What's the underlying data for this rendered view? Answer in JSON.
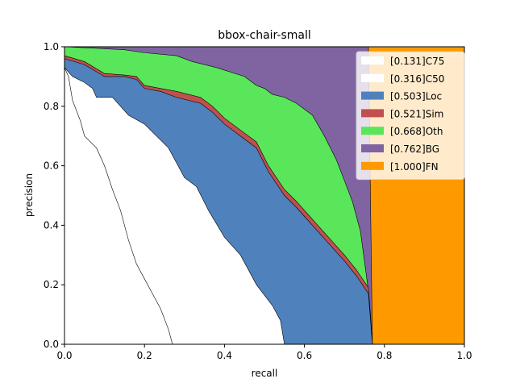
{
  "chart_data": {
    "type": "area",
    "title": "bbox-chair-small",
    "xlabel": "recall",
    "ylabel": "precision",
    "xlim": [
      0,
      1
    ],
    "ylim": [
      0,
      1
    ],
    "xticks": [
      "0.0",
      "0.2",
      "0.4",
      "0.6",
      "0.8",
      "1.0"
    ],
    "yticks": [
      "0.0",
      "0.2",
      "0.4",
      "0.6",
      "0.8",
      "1.0"
    ],
    "legend_position": "top-right",
    "grid": false,
    "series": [
      {
        "name": "[1.000]FN",
        "color": "#ff9900",
        "points": [
          [
            0,
            1
          ],
          [
            1,
            1
          ]
        ]
      },
      {
        "name": "[0.762]BG",
        "color": "#8064a2",
        "points": [
          [
            0,
            1
          ],
          [
            0.76,
            1
          ],
          [
            0.765,
            0.5
          ],
          [
            0.77,
            0
          ]
        ]
      },
      {
        "name": "[0.668]Oth",
        "color": "#5ae65a",
        "points": [
          [
            0,
            1
          ],
          [
            0.15,
            0.99
          ],
          [
            0.2,
            0.98
          ],
          [
            0.28,
            0.97
          ],
          [
            0.32,
            0.95
          ],
          [
            0.38,
            0.93
          ],
          [
            0.45,
            0.9
          ],
          [
            0.48,
            0.87
          ],
          [
            0.5,
            0.86
          ],
          [
            0.52,
            0.84
          ],
          [
            0.55,
            0.83
          ],
          [
            0.58,
            0.81
          ],
          [
            0.62,
            0.77
          ],
          [
            0.65,
            0.7
          ],
          [
            0.68,
            0.62
          ],
          [
            0.7,
            0.55
          ],
          [
            0.72,
            0.48
          ],
          [
            0.74,
            0.38
          ],
          [
            0.75,
            0.28
          ],
          [
            0.76,
            0.18
          ],
          [
            0.765,
            0.1
          ],
          [
            0.77,
            0
          ]
        ]
      },
      {
        "name": "[0.521]Sim",
        "color": "#c0504d",
        "points": [
          [
            0,
            0.97
          ],
          [
            0.05,
            0.95
          ],
          [
            0.1,
            0.91
          ],
          [
            0.15,
            0.905
          ],
          [
            0.18,
            0.9
          ],
          [
            0.2,
            0.87
          ],
          [
            0.24,
            0.86
          ],
          [
            0.28,
            0.85
          ],
          [
            0.34,
            0.83
          ],
          [
            0.37,
            0.8
          ],
          [
            0.4,
            0.76
          ],
          [
            0.44,
            0.72
          ],
          [
            0.48,
            0.68
          ],
          [
            0.51,
            0.6
          ],
          [
            0.55,
            0.52
          ],
          [
            0.58,
            0.48
          ],
          [
            0.62,
            0.42
          ],
          [
            0.66,
            0.36
          ],
          [
            0.7,
            0.3
          ],
          [
            0.73,
            0.25
          ],
          [
            0.76,
            0.19
          ],
          [
            0.77,
            0
          ]
        ]
      },
      {
        "name": "[0.503]Loc",
        "color": "#4f81bd",
        "points": [
          [
            0,
            0.96
          ],
          [
            0.05,
            0.94
          ],
          [
            0.1,
            0.9
          ],
          [
            0.15,
            0.9
          ],
          [
            0.18,
            0.89
          ],
          [
            0.2,
            0.86
          ],
          [
            0.24,
            0.85
          ],
          [
            0.28,
            0.83
          ],
          [
            0.34,
            0.81
          ],
          [
            0.37,
            0.78
          ],
          [
            0.4,
            0.74
          ],
          [
            0.44,
            0.7
          ],
          [
            0.48,
            0.66
          ],
          [
            0.51,
            0.58
          ],
          [
            0.55,
            0.5
          ],
          [
            0.58,
            0.46
          ],
          [
            0.62,
            0.4
          ],
          [
            0.66,
            0.34
          ],
          [
            0.7,
            0.28
          ],
          [
            0.73,
            0.23
          ],
          [
            0.76,
            0.17
          ],
          [
            0.77,
            0
          ]
        ]
      },
      {
        "name": "[0.316]C50",
        "color": "#ffffff",
        "points": [
          [
            0,
            0.93
          ],
          [
            0.02,
            0.9
          ],
          [
            0.05,
            0.88
          ],
          [
            0.07,
            0.86
          ],
          [
            0.08,
            0.83
          ],
          [
            0.12,
            0.83
          ],
          [
            0.14,
            0.8
          ],
          [
            0.16,
            0.77
          ],
          [
            0.2,
            0.74
          ],
          [
            0.26,
            0.66
          ],
          [
            0.3,
            0.56
          ],
          [
            0.33,
            0.53
          ],
          [
            0.36,
            0.45
          ],
          [
            0.4,
            0.36
          ],
          [
            0.44,
            0.3
          ],
          [
            0.48,
            0.2
          ],
          [
            0.52,
            0.13
          ],
          [
            0.54,
            0.08
          ],
          [
            0.55,
            0
          ]
        ]
      },
      {
        "name": "[0.131]C75",
        "color": "#ffffff",
        "points": [
          [
            0,
            0.93
          ],
          [
            0.01,
            0.9
          ],
          [
            0.02,
            0.82
          ],
          [
            0.04,
            0.75
          ],
          [
            0.05,
            0.7
          ],
          [
            0.08,
            0.66
          ],
          [
            0.1,
            0.6
          ],
          [
            0.12,
            0.52
          ],
          [
            0.14,
            0.45
          ],
          [
            0.16,
            0.35
          ],
          [
            0.18,
            0.27
          ],
          [
            0.2,
            0.22
          ],
          [
            0.22,
            0.17
          ],
          [
            0.24,
            0.12
          ],
          [
            0.26,
            0.05
          ],
          [
            0.27,
            0
          ]
        ]
      }
    ]
  }
}
